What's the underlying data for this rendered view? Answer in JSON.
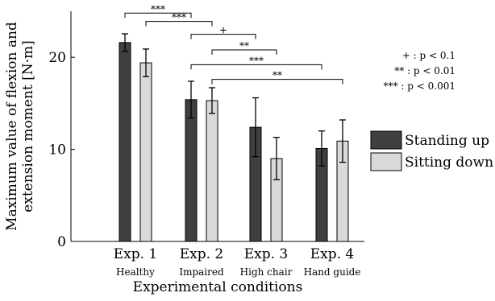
{
  "chart_data": {
    "type": "bar",
    "xlabel": "Experimental conditions",
    "ylabel_lines": [
      "Maximum value of flexion and",
      "extension moment [N·m]"
    ],
    "ylim": [
      0,
      25
    ],
    "yticks": [
      0,
      10,
      20
    ],
    "categories": [
      "Exp. 1",
      "Exp. 2",
      "Exp. 3",
      "Exp. 4"
    ],
    "subcategories": [
      "Healthy",
      "Impaired",
      "High chair",
      "Hand guide"
    ],
    "series": [
      {
        "name": "Standing up",
        "color": "#404040",
        "values": [
          21.6,
          15.4,
          12.4,
          10.1
        ],
        "errors": [
          0.95,
          2.0,
          3.2,
          1.9
        ]
      },
      {
        "name": "Sitting down",
        "color": "#d9d9d9",
        "values": [
          19.4,
          15.3,
          9.0,
          10.9
        ],
        "errors": [
          1.5,
          1.4,
          2.3,
          2.3
        ]
      }
    ],
    "significance": [
      {
        "from": [
          0,
          0
        ],
        "to": [
          1,
          0
        ],
        "label": "***",
        "level": 24.8
      },
      {
        "from": [
          0,
          1
        ],
        "to": [
          1,
          1
        ],
        "label": "***",
        "level": 23.9
      },
      {
        "from": [
          1,
          0
        ],
        "to": [
          2,
          0
        ],
        "label": "+",
        "level": 22.5
      },
      {
        "from": [
          1,
          1
        ],
        "to": [
          2,
          1
        ],
        "label": "**",
        "level": 20.8
      },
      {
        "from": [
          1,
          0
        ],
        "to": [
          3,
          0
        ],
        "label": "***",
        "level": 19.2
      },
      {
        "from": [
          1,
          1
        ],
        "to": [
          3,
          1
        ],
        "label": "**",
        "level": 17.6
      }
    ],
    "sig_legend": [
      "+ : p < 0.1",
      "** : p < 0.01",
      "*** : p < 0.001"
    ],
    "legend_position": "right"
  }
}
